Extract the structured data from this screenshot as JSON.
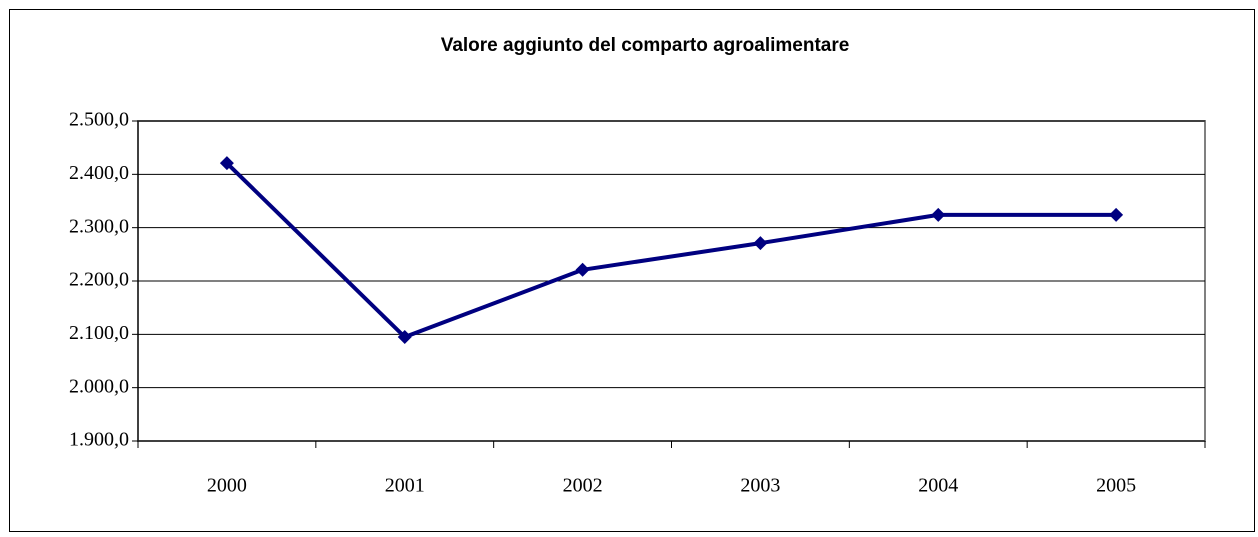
{
  "chart_data": {
    "type": "line",
    "title": "Valore aggiunto del comparto agroalimentare",
    "categories": [
      "2000",
      "2001",
      "2002",
      "2003",
      "2004",
      "2005"
    ],
    "series": [
      {
        "name": null,
        "color": "#000080",
        "values": [
          2421,
          2095,
          2221,
          2271,
          2324,
          2324
        ]
      }
    ],
    "ylim": [
      1900,
      2500
    ],
    "yticks": [
      {
        "value": 1900,
        "label": "1.900,0"
      },
      {
        "value": 2000,
        "label": "2.000,0"
      },
      {
        "value": 2100,
        "label": "2.100,0"
      },
      {
        "value": 2200,
        "label": "2.200,0"
      },
      {
        "value": 2300,
        "label": "2.300,0"
      },
      {
        "value": 2400,
        "label": "2.400,0"
      },
      {
        "value": 2500,
        "label": "2.500,0"
      }
    ],
    "grid": true
  }
}
